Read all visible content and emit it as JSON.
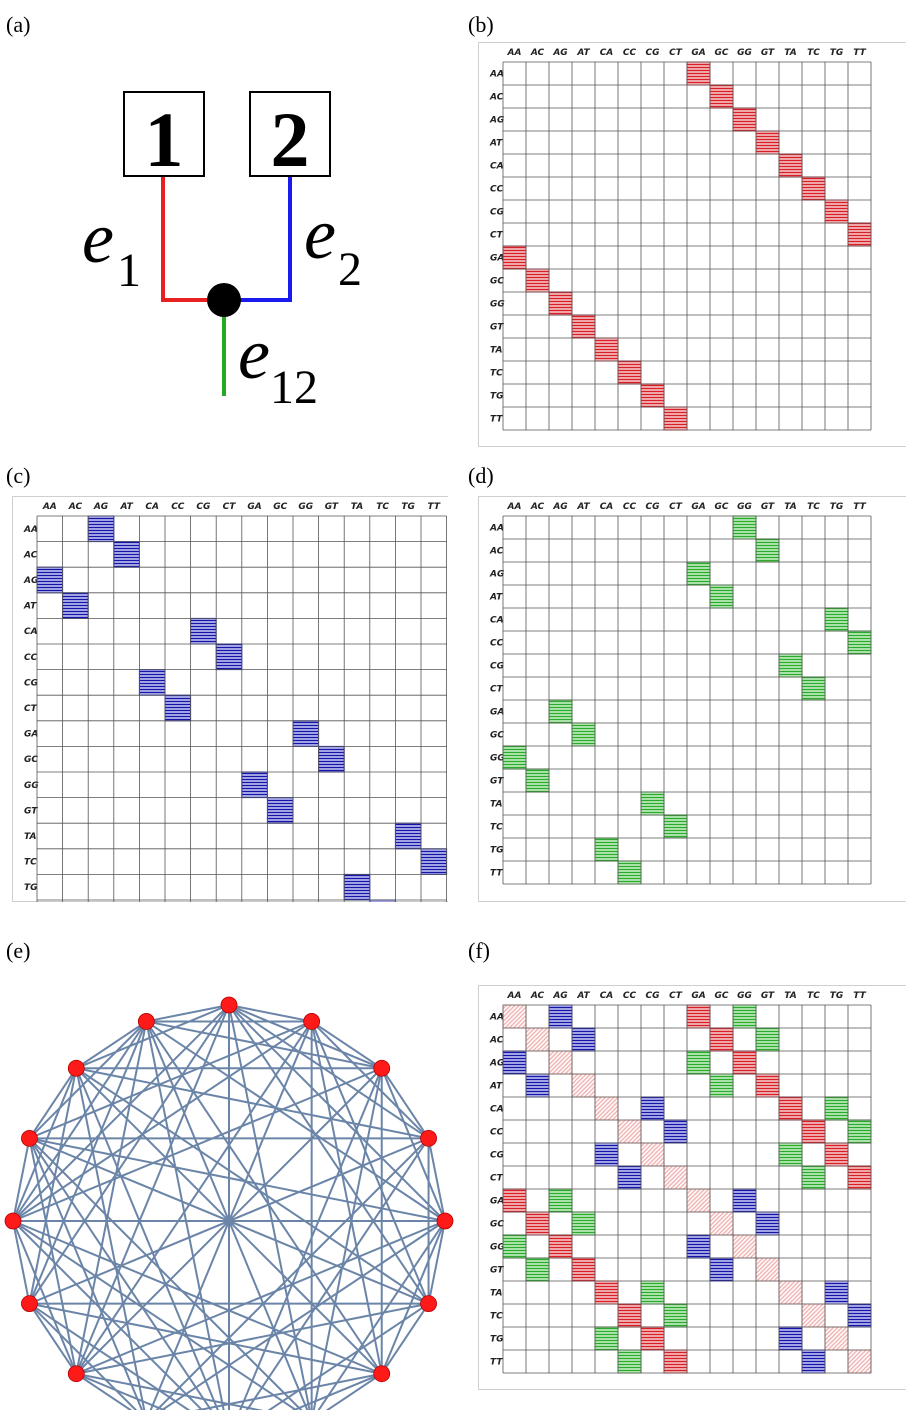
{
  "panels": {
    "a": "(a)",
    "b": "(b)",
    "c": "(c)",
    "d": "(d)",
    "e": "(e)",
    "f": "(f)"
  },
  "tree": {
    "leaf1": "1",
    "leaf2": "2",
    "edge1": {
      "letter": "e",
      "sub": "1"
    },
    "edge2": {
      "letter": "e",
      "sub": "2"
    },
    "edge12": {
      "letter": "e",
      "sub": "12"
    },
    "colors": {
      "edge1": "#e8201f",
      "edge2": "#1a1aee",
      "edge12": "#22aa22",
      "node": "#000000"
    }
  },
  "labels": [
    "AA",
    "AC",
    "AG",
    "AT",
    "CA",
    "CC",
    "CG",
    "CT",
    "GA",
    "GC",
    "GG",
    "GT",
    "TA",
    "TC",
    "TG",
    "TT"
  ],
  "matrices": {
    "b": {
      "color": "red",
      "cells": [
        [
          0,
          8
        ],
        [
          1,
          9
        ],
        [
          2,
          10
        ],
        [
          3,
          11
        ],
        [
          4,
          12
        ],
        [
          5,
          13
        ],
        [
          6,
          14
        ],
        [
          7,
          15
        ],
        [
          8,
          0
        ],
        [
          9,
          1
        ],
        [
          10,
          2
        ],
        [
          11,
          3
        ],
        [
          12,
          4
        ],
        [
          13,
          5
        ],
        [
          14,
          6
        ],
        [
          15,
          7
        ]
      ]
    },
    "c": {
      "color": "blue",
      "cells": [
        [
          0,
          2
        ],
        [
          1,
          3
        ],
        [
          2,
          0
        ],
        [
          3,
          1
        ],
        [
          4,
          6
        ],
        [
          5,
          7
        ],
        [
          6,
          4
        ],
        [
          7,
          5
        ],
        [
          8,
          10
        ],
        [
          9,
          11
        ],
        [
          10,
          8
        ],
        [
          11,
          9
        ],
        [
          12,
          14
        ],
        [
          13,
          15
        ],
        [
          14,
          12
        ],
        [
          15,
          13
        ]
      ]
    },
    "d": {
      "color": "green",
      "cells": [
        [
          0,
          10
        ],
        [
          1,
          11
        ],
        [
          2,
          8
        ],
        [
          3,
          9
        ],
        [
          4,
          14
        ],
        [
          5,
          15
        ],
        [
          6,
          12
        ],
        [
          7,
          13
        ],
        [
          8,
          2
        ],
        [
          9,
          3
        ],
        [
          10,
          0
        ],
        [
          11,
          1
        ],
        [
          12,
          6
        ],
        [
          13,
          7
        ],
        [
          14,
          4
        ],
        [
          15,
          5
        ]
      ]
    }
  },
  "palette": {
    "red": {
      "fill": "#f6c8c8",
      "line": "#d81f26",
      "light": "#f1b0b0"
    },
    "blue": {
      "fill": "#c4c6f4",
      "line": "#1515a8",
      "light": "#9fa3e6"
    },
    "green": {
      "fill": "#c8f0c8",
      "line": "#2bab2b",
      "light": "#9bd89b"
    },
    "graph_edge": "#6b85a8",
    "graph_node": "#ff1a1a"
  },
  "graph": {
    "node_count": 16,
    "edge_pairs": [
      [
        0,
        1
      ],
      [
        0,
        2
      ],
      [
        0,
        3
      ],
      [
        0,
        4
      ],
      [
        0,
        5
      ],
      [
        0,
        7
      ],
      [
        0,
        8
      ],
      [
        0,
        10
      ],
      [
        0,
        11
      ],
      [
        0,
        12
      ],
      [
        0,
        14
      ],
      [
        0,
        15
      ],
      [
        1,
        2
      ],
      [
        1,
        3
      ],
      [
        1,
        5
      ],
      [
        1,
        6
      ],
      [
        1,
        7
      ],
      [
        1,
        9
      ],
      [
        1,
        10
      ],
      [
        1,
        12
      ],
      [
        1,
        13
      ],
      [
        1,
        15
      ],
      [
        2,
        3
      ],
      [
        2,
        4
      ],
      [
        2,
        6
      ],
      [
        2,
        7
      ],
      [
        2,
        8
      ],
      [
        2,
        10
      ],
      [
        2,
        12
      ],
      [
        2,
        14
      ],
      [
        2,
        15
      ],
      [
        3,
        4
      ],
      [
        3,
        5
      ],
      [
        3,
        8
      ],
      [
        3,
        9
      ],
      [
        3,
        11
      ],
      [
        3,
        13
      ],
      [
        3,
        14
      ],
      [
        4,
        5
      ],
      [
        4,
        6
      ],
      [
        4,
        7
      ],
      [
        4,
        9
      ],
      [
        4,
        10
      ],
      [
        4,
        12
      ],
      [
        4,
        13
      ],
      [
        4,
        15
      ],
      [
        5,
        6
      ],
      [
        5,
        8
      ],
      [
        5,
        10
      ],
      [
        5,
        11
      ],
      [
        5,
        13
      ],
      [
        5,
        14
      ],
      [
        6,
        7
      ],
      [
        6,
        8
      ],
      [
        6,
        9
      ],
      [
        6,
        11
      ],
      [
        6,
        12
      ],
      [
        6,
        14
      ],
      [
        6,
        15
      ],
      [
        7,
        8
      ],
      [
        7,
        9
      ],
      [
        7,
        10
      ],
      [
        7,
        12
      ],
      [
        7,
        13
      ],
      [
        7,
        15
      ],
      [
        8,
        9
      ],
      [
        8,
        10
      ],
      [
        8,
        11
      ],
      [
        8,
        12
      ],
      [
        8,
        13
      ],
      [
        8,
        14
      ],
      [
        8,
        15
      ],
      [
        9,
        10
      ],
      [
        9,
        11
      ],
      [
        9,
        13
      ],
      [
        9,
        14
      ],
      [
        10,
        11
      ],
      [
        10,
        12
      ],
      [
        10,
        13
      ],
      [
        10,
        15
      ],
      [
        11,
        12
      ],
      [
        11,
        14
      ],
      [
        11,
        15
      ],
      [
        12,
        13
      ],
      [
        12,
        14
      ],
      [
        12,
        15
      ],
      [
        13,
        14
      ],
      [
        13,
        15
      ],
      [
        14,
        15
      ]
    ]
  }
}
